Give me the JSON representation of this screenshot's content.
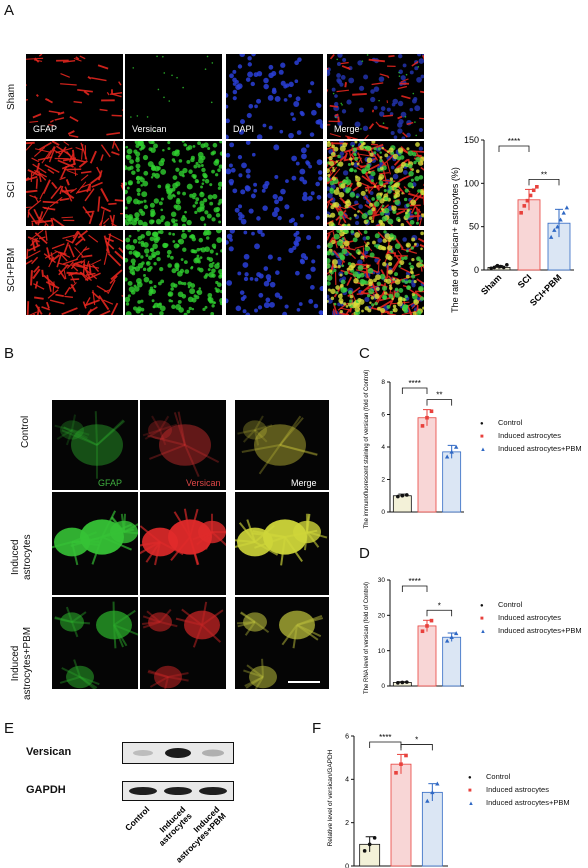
{
  "panels": {
    "A": "A",
    "B": "B",
    "C": "C",
    "D": "D",
    "E": "E",
    "F": "F"
  },
  "panel_a": {
    "row_labels": [
      "Sham",
      "SCI",
      "SCI+PBM"
    ],
    "channel_labels": [
      "GFAP",
      "Versican",
      "DAPI",
      "Merge"
    ]
  },
  "panel_b": {
    "row_labels": [
      "Control",
      "Induced\nastrocytes",
      "Induced\nastrocytes+PBM"
    ],
    "channel_labels": [
      "GFAP",
      "Versican",
      "Merge"
    ]
  },
  "panel_e": {
    "bands": [
      "Versican",
      "GAPDH"
    ],
    "lanes": [
      "Control",
      "Induced\nastrocytes",
      "Induced\nastrocytes+PBM"
    ]
  },
  "legend": {
    "items": [
      "Control",
      "Induced astrocytes",
      "Induced astrocytes+PBM"
    ],
    "colors": [
      "#111111",
      "#e8413c",
      "#2f68c4"
    ]
  },
  "chart_data": [
    {
      "id": "A",
      "type": "bar",
      "categories": [
        "Sham",
        "SCI",
        "SCI+PBM"
      ],
      "values": [
        3,
        81,
        54
      ],
      "errors": [
        2,
        12,
        16
      ],
      "ylabel": "The rate of Versican+ astrocytes (%)",
      "ylim": [
        0,
        150
      ],
      "yticks": [
        0,
        50,
        100,
        150
      ],
      "colors": [
        "#f3f1d8",
        "#f8d6d6",
        "#dbe6f4"
      ],
      "point_colors": [
        "#111111",
        "#e8413c",
        "#2f68c4"
      ],
      "points": [
        [
          2,
          3,
          5,
          4,
          3,
          6
        ],
        [
          66,
          74,
          80,
          86,
          92,
          96
        ],
        [
          38,
          46,
          50,
          58,
          66,
          72
        ]
      ],
      "significance": [
        {
          "from": 0,
          "to": 1,
          "label": "****"
        },
        {
          "from": 1,
          "to": 2,
          "label": "**"
        }
      ]
    },
    {
      "id": "C",
      "type": "bar",
      "categories": [
        "Control",
        "Induced astrocytes",
        "Induced astrocytes+PBM"
      ],
      "values": [
        1.0,
        5.8,
        3.7
      ],
      "errors": [
        0.1,
        0.5,
        0.4
      ],
      "ylabel": "The immunofluorescent staining of versican (fold of Control)",
      "ylim": [
        0,
        8
      ],
      "yticks": [
        0,
        2,
        4,
        6,
        8
      ],
      "colors": [
        "#f3f1d8",
        "#f8d6d6",
        "#dbe6f4"
      ],
      "point_colors": [
        "#111111",
        "#e8413c",
        "#2f68c4"
      ],
      "points": [
        [
          0.95,
          1.0,
          1.05
        ],
        [
          5.3,
          5.8,
          6.2
        ],
        [
          3.4,
          3.7,
          4.0
        ]
      ],
      "significance": [
        {
          "from": 0,
          "to": 1,
          "label": "****"
        },
        {
          "from": 1,
          "to": 2,
          "label": "**"
        }
      ]
    },
    {
      "id": "D",
      "type": "bar",
      "categories": [
        "Control",
        "Induced astrocytes",
        "Induced astrocytes+PBM"
      ],
      "values": [
        1.0,
        17.0,
        13.8
      ],
      "errors": [
        0.2,
        1.6,
        1.2
      ],
      "ylabel": "The RNA level of versican (fold of Control)",
      "ylim": [
        0,
        30
      ],
      "yticks": [
        0,
        10,
        20,
        30
      ],
      "colors": [
        "#f3f1d8",
        "#f8d6d6",
        "#dbe6f4"
      ],
      "point_colors": [
        "#111111",
        "#e8413c",
        "#2f68c4"
      ],
      "points": [
        [
          0.9,
          1.0,
          1.1
        ],
        [
          15.5,
          17.0,
          18.5
        ],
        [
          12.8,
          13.8,
          14.9
        ]
      ],
      "significance": [
        {
          "from": 0,
          "to": 1,
          "label": "****"
        },
        {
          "from": 1,
          "to": 2,
          "label": "*"
        }
      ]
    },
    {
      "id": "F",
      "type": "bar",
      "categories": [
        "Control",
        "Induced astrocytes",
        "Induced astrocytes+PBM"
      ],
      "values": [
        1.0,
        4.7,
        3.4
      ],
      "errors": [
        0.35,
        0.45,
        0.4
      ],
      "ylabel": "Relative level of versican/GAPDH",
      "ylim": [
        0,
        6
      ],
      "yticks": [
        0,
        2,
        4,
        6
      ],
      "colors": [
        "#f3f1d8",
        "#f8d6d6",
        "#dbe6f4"
      ],
      "point_colors": [
        "#111111",
        "#e8413c",
        "#2f68c4"
      ],
      "points": [
        [
          0.7,
          1.0,
          1.3
        ],
        [
          4.3,
          4.7,
          5.1
        ],
        [
          3.0,
          3.4,
          3.8
        ]
      ],
      "significance": [
        {
          "from": 0,
          "to": 1,
          "label": "****"
        },
        {
          "from": 1,
          "to": 2,
          "label": "*"
        }
      ]
    }
  ]
}
